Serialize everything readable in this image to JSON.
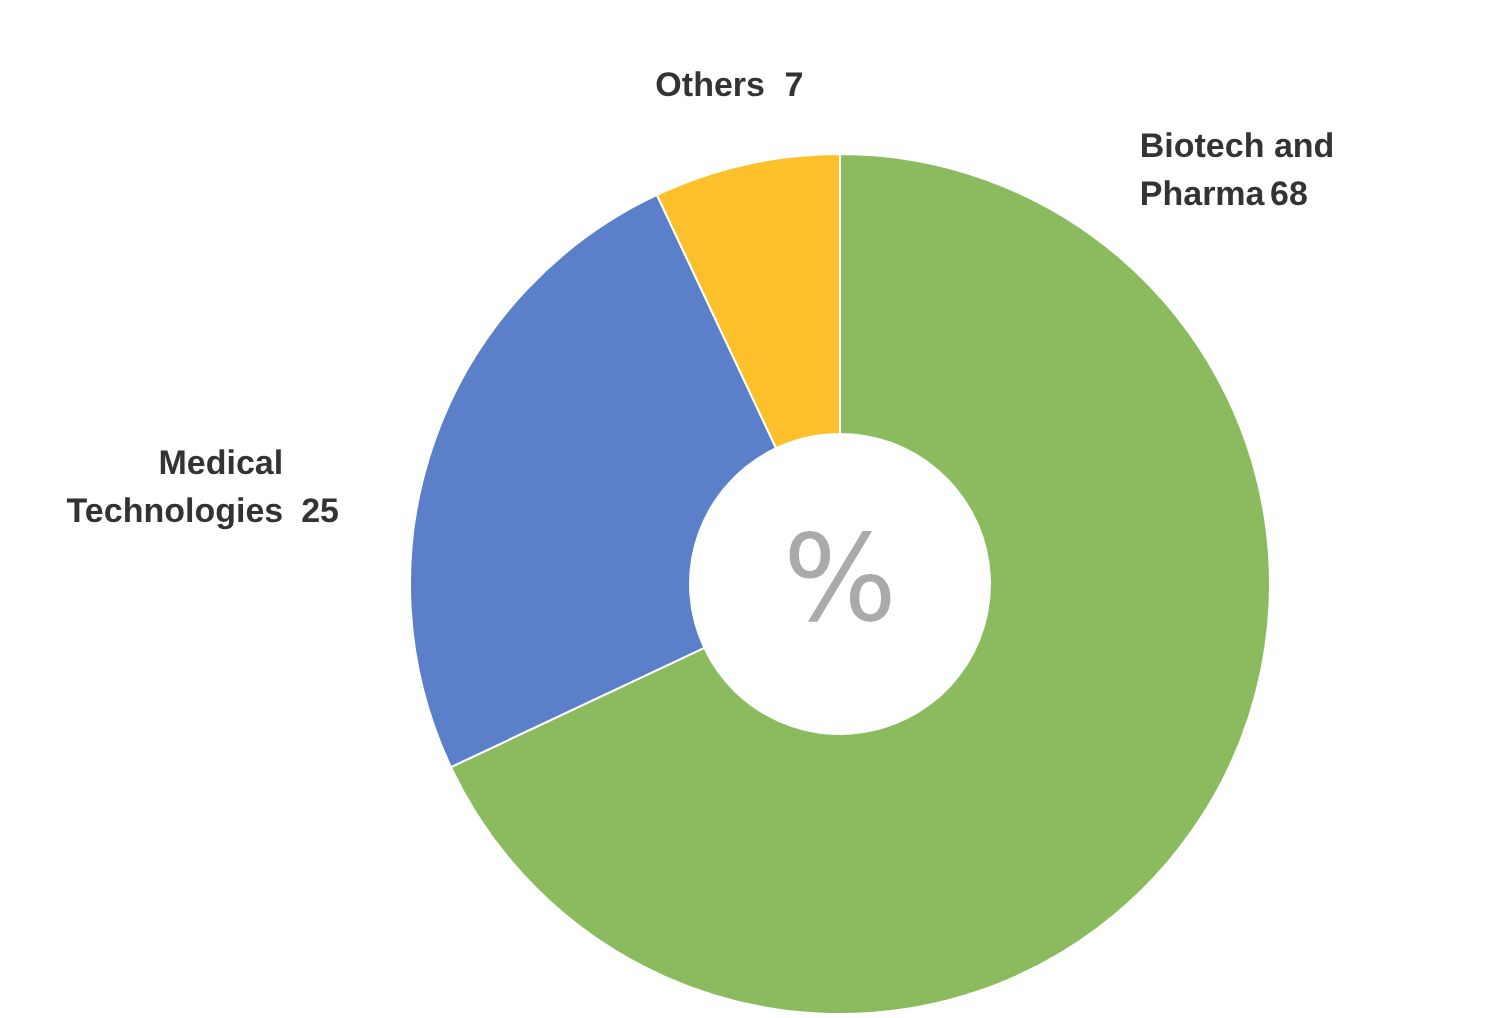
{
  "chart_data": {
    "type": "donut",
    "categories": [
      "Biotech and Pharma",
      "Medical Technologies",
      "Others"
    ],
    "values": [
      68,
      25,
      7
    ],
    "colors": [
      "#8bbb5e",
      "#5b7fc8",
      "#fcc12a"
    ],
    "data_labels": true,
    "annotations": [
      "%"
    ]
  }
}
